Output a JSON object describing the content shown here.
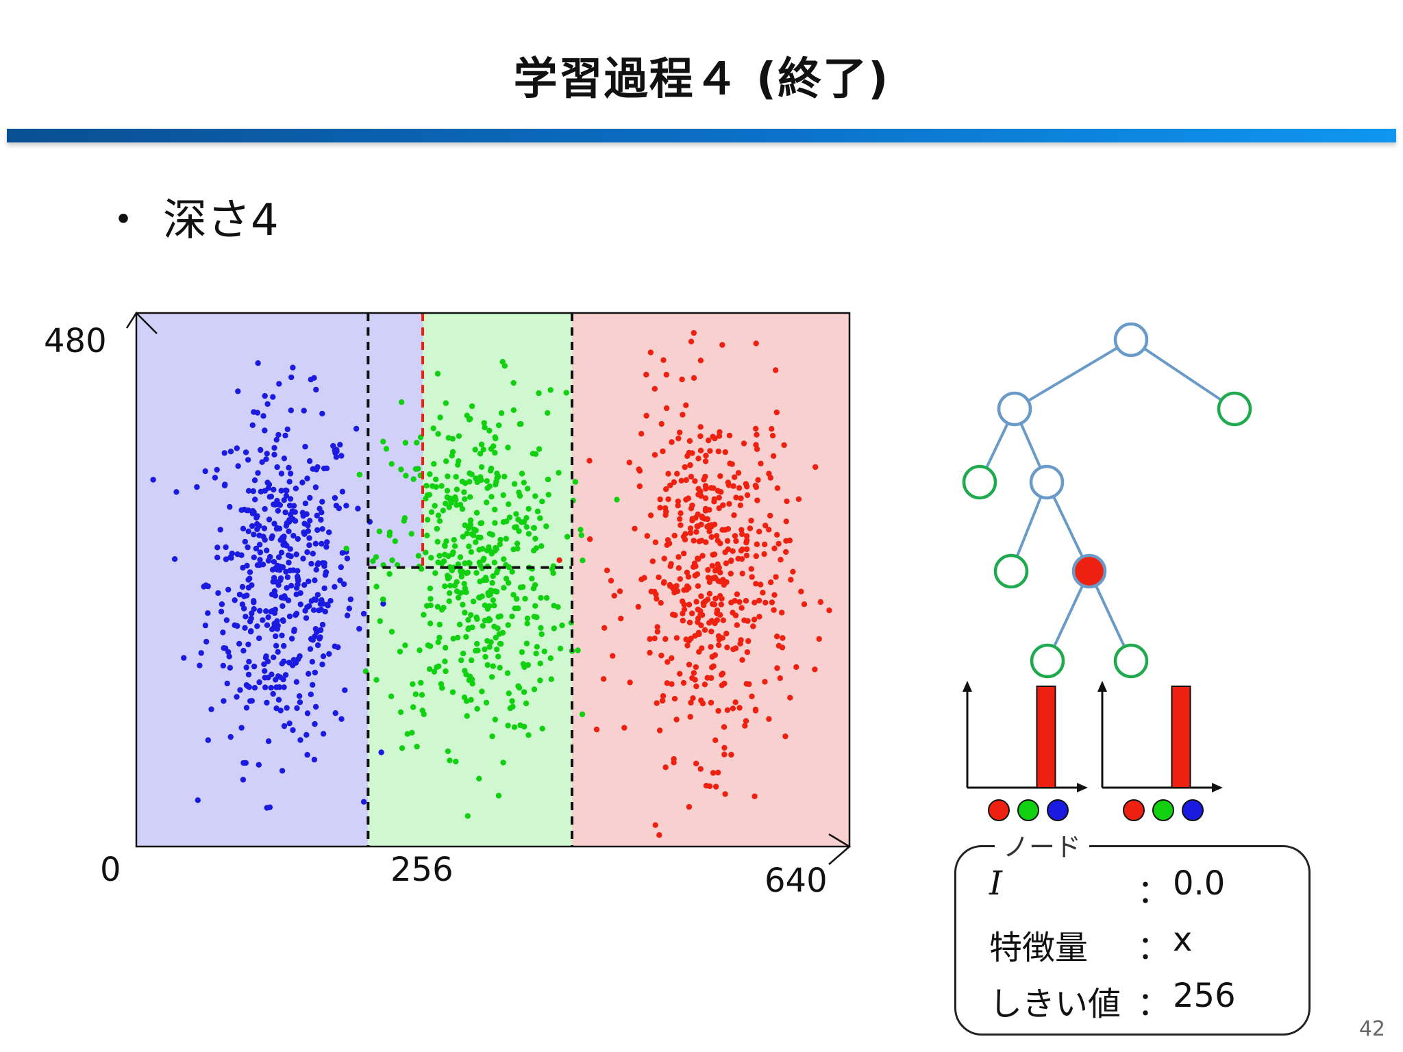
{
  "title": "学習過程４ (終了)",
  "bullet": {
    "marker": "・",
    "text": "深さ4"
  },
  "plot": {
    "x_axis": {
      "min_label": "0",
      "split_label": "256",
      "max_label": "640"
    },
    "y_axis": {
      "max_label": "480"
    },
    "regions": {
      "blue": "#d0d0f8",
      "green": "#d0f8d0",
      "red": "#f8d0d0"
    },
    "clusters": [
      {
        "class": "blue",
        "color": "#1a1ae0",
        "cx": 130,
        "cy": 240,
        "sx": 33,
        "sy": 78,
        "n": 480
      },
      {
        "class": "green",
        "color": "#10d010",
        "cx": 305,
        "cy": 250,
        "sx": 40,
        "sy": 78,
        "n": 480
      },
      {
        "class": "red",
        "color": "#ee2010",
        "cx": 515,
        "cy": 245,
        "sx": 36,
        "sy": 80,
        "n": 480
      }
    ],
    "splits": {
      "x1": 208,
      "x2": 391,
      "y_split": 251,
      "red_x": 257
    }
  },
  "tree": {
    "colors": {
      "edge": "#6a9ac8",
      "node_stroke": "#6a9ac8",
      "leaf_stroke": "#20aa50",
      "active_fill": "#ee2010"
    }
  },
  "histograms": [
    {
      "values": [
        1,
        0,
        0
      ],
      "colors": [
        "#ee2010",
        "#10d010",
        "#1a1ae0"
      ]
    },
    {
      "values": [
        1,
        0,
        0
      ],
      "colors": [
        "#ee2010",
        "#10d010",
        "#1a1ae0"
      ]
    }
  ],
  "node_info": {
    "legend": "ノード",
    "rows": [
      {
        "key": "I",
        "sep": "：",
        "value": "0.0"
      },
      {
        "key": "特徴量",
        "sep": "：",
        "value": "x"
      },
      {
        "key": "しきい値",
        "sep": "：",
        "value": "256"
      }
    ]
  },
  "page_number": "42"
}
